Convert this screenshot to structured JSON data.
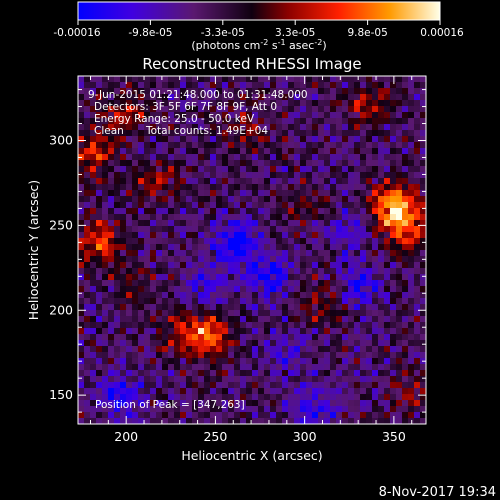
{
  "colorbar": {
    "ticks": [
      "-0.00016",
      "-9.8e-05",
      "-3.3e-05",
      "3.3e-05",
      "9.8e-05",
      "0.00016"
    ],
    "unit_main": "(photons cm",
    "unit_sup1": "-2",
    "unit_mid1": " s",
    "unit_sup2": "-1",
    "unit_mid2": " asec",
    "unit_sup3": "-2",
    "unit_end": ")",
    "colors": [
      "#0000ff",
      "#5000d0",
      "#400050",
      "#000000",
      "#8b0000",
      "#ff3000",
      "#ffa000",
      "#ffffe0"
    ]
  },
  "chart_data": {
    "type": "heatmap",
    "title": "Reconstructed RHESSI Image",
    "xlabel": "Heliocentric X (arcsec)",
    "ylabel": "Heliocentric Y (arcsec)",
    "xlim": [
      173,
      368
    ],
    "ylim": [
      133,
      338
    ],
    "x_ticks": [
      "200",
      "250",
      "300",
      "350"
    ],
    "y_ticks": [
      "150",
      "200",
      "250",
      "300"
    ],
    "value_range": [
      -0.00016,
      0.00016
    ],
    "peak": [
      347,
      263
    ],
    "hotspots": [
      {
        "x": 350,
        "y": 263,
        "value": 0.00015
      },
      {
        "x": 357,
        "y": 248,
        "value": 0.00012
      },
      {
        "x": 185,
        "y": 240,
        "value": 0.00011
      },
      {
        "x": 182,
        "y": 292,
        "value": 9e-05
      },
      {
        "x": 247,
        "y": 186,
        "value": 0.00011
      },
      {
        "x": 232,
        "y": 184,
        "value": 8e-05
      },
      {
        "x": 215,
        "y": 275,
        "value": 7e-05
      },
      {
        "x": 310,
        "y": 205,
        "value": 6e-05
      },
      {
        "x": 335,
        "y": 322,
        "value": 7e-05
      },
      {
        "x": 200,
        "y": 315,
        "value": 8e-05
      },
      {
        "x": 265,
        "y": 305,
        "value": 5e-05
      },
      {
        "x": 360,
        "y": 150,
        "value": 5e-05
      },
      {
        "x": 205,
        "y": 215,
        "value": 5e-05
      },
      {
        "x": 300,
        "y": 260,
        "value": 4e-05
      }
    ],
    "coldspots": [
      {
        "x": 262,
        "y": 240,
        "value": -0.00013
      },
      {
        "x": 280,
        "y": 220,
        "value": -0.0001
      },
      {
        "x": 195,
        "y": 150,
        "value": -9e-05
      },
      {
        "x": 305,
        "y": 142,
        "value": -8e-05
      },
      {
        "x": 330,
        "y": 215,
        "value": -8e-05
      },
      {
        "x": 322,
        "y": 245,
        "value": -6e-05
      },
      {
        "x": 245,
        "y": 215,
        "value": -6e-05
      },
      {
        "x": 290,
        "y": 175,
        "value": -6e-05
      }
    ]
  },
  "info": {
    "time_range": "9-Jun-2015 01:21:48.000 to 01:31:48.000",
    "detectors": "Detectors: 3F 5F 6F 7F 8F 9F, Att 0",
    "energy": "Energy Range: 25.0 - 50.0 keV",
    "clean": "Clean",
    "counts": "Total counts: 1.49E+04",
    "peak_label": "Position of Peak = [347,263]"
  },
  "footer": {
    "timestamp": "8-Nov-2017 19:34"
  }
}
